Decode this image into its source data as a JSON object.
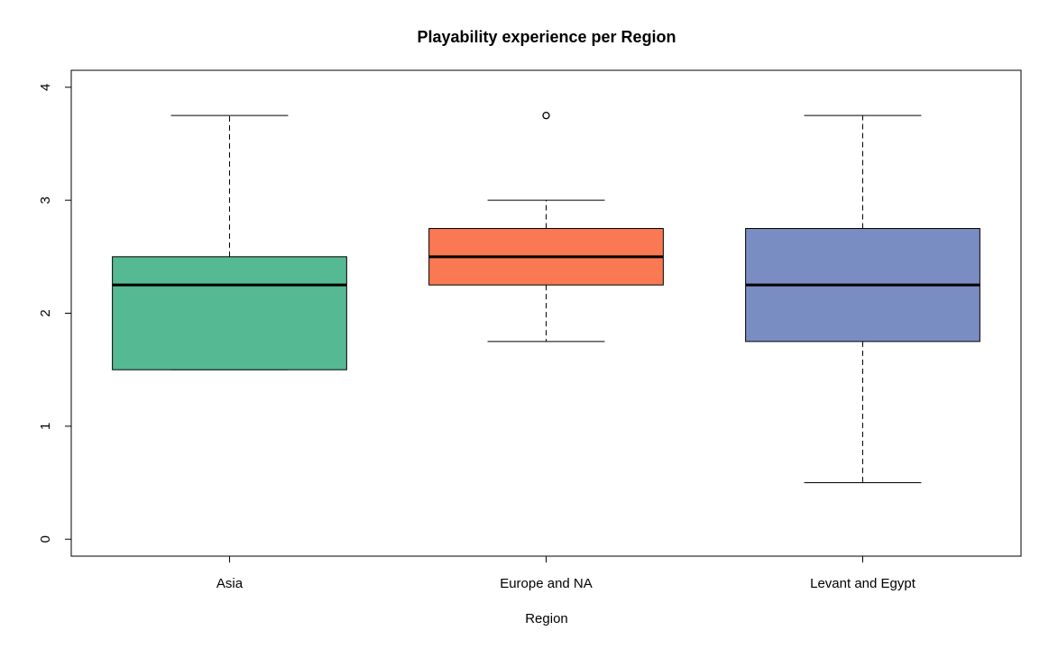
{
  "chart_data": {
    "type": "boxplot",
    "title": "Playability experience per Region",
    "xlabel": "Region",
    "ylabel": "",
    "ylim": [
      -0.15,
      4.15
    ],
    "yticks": [
      0,
      1,
      2,
      3,
      4
    ],
    "grid": false,
    "categories": [
      "Asia",
      "Europe and NA",
      "Levant and Egypt"
    ],
    "boxes": [
      {
        "category": "Asia",
        "whisker_low": 1.5,
        "q1": 1.5,
        "median": 2.25,
        "q3": 2.5,
        "whisker_high": 3.75,
        "outliers": [],
        "color": "#55B994"
      },
      {
        "category": "Europe and NA",
        "whisker_low": 1.75,
        "q1": 2.25,
        "median": 2.5,
        "q3": 2.75,
        "whisker_high": 3.0,
        "outliers": [
          3.75
        ],
        "color": "#FA7852"
      },
      {
        "category": "Levant and Egypt",
        "whisker_low": 0.5,
        "q1": 1.75,
        "median": 2.25,
        "q3": 2.75,
        "whisker_high": 3.75,
        "outliers": [],
        "color": "#7A8DC2"
      }
    ]
  }
}
